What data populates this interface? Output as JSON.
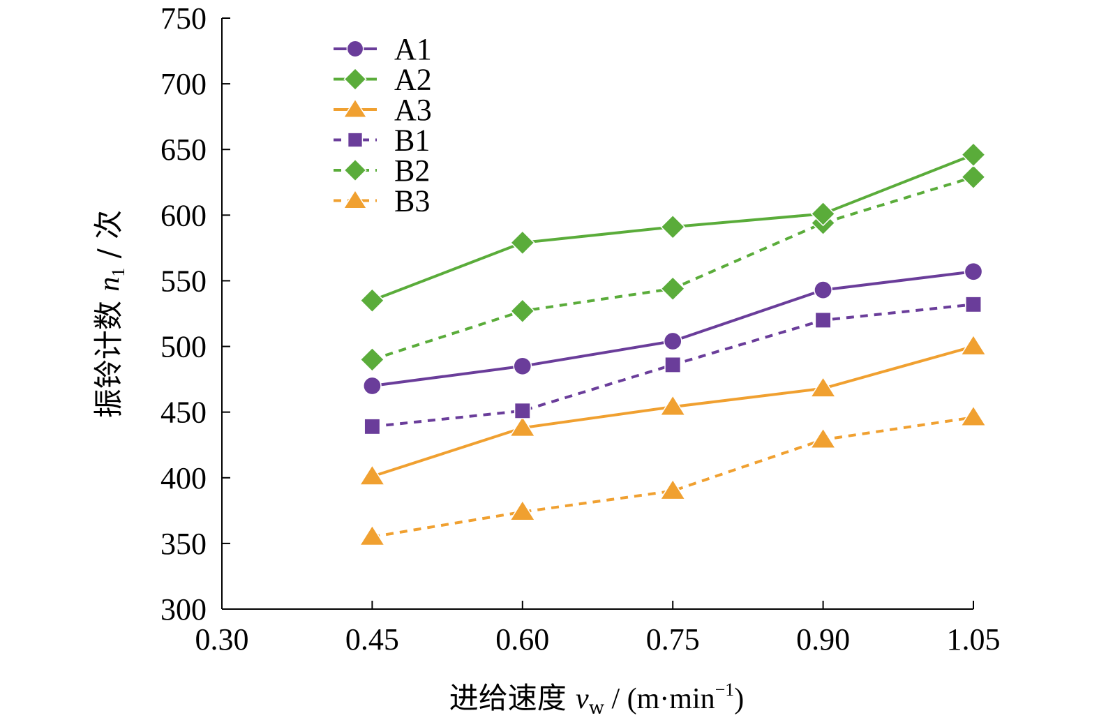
{
  "chart_data": {
    "type": "line",
    "xlabel": {
      "main": "进给速度 ",
      "var": "v",
      "var_sub": "w",
      "unit_open": " / (m·min",
      "unit_sup": "−1",
      "unit_close": ")"
    },
    "ylabel": {
      "main": "振铃计数 ",
      "var": "n",
      "var_sub": "1",
      "unit": " / 次"
    },
    "xlim": [
      0.3,
      1.05
    ],
    "ylim": [
      300,
      750
    ],
    "x_ticks": [
      "0.30",
      "0.45",
      "0.60",
      "0.75",
      "0.90",
      "1.05"
    ],
    "y_ticks": [
      "300",
      "350",
      "400",
      "450",
      "500",
      "550",
      "600",
      "650",
      "700",
      "750"
    ],
    "x": [
      0.45,
      0.6,
      0.75,
      0.9,
      1.05
    ],
    "grid": false,
    "legend_position": "top-left",
    "series": [
      {
        "name": "A1",
        "values": [
          470,
          485,
          504,
          543,
          557
        ],
        "color": "#6a3d9a",
        "marker": "circle",
        "dash": "solid"
      },
      {
        "name": "A2",
        "values": [
          535,
          579,
          591,
          601,
          646
        ],
        "color": "#5aac3a",
        "marker": "diamond",
        "dash": "solid"
      },
      {
        "name": "A3",
        "values": [
          401,
          438,
          454,
          468,
          500
        ],
        "color": "#f0a030",
        "marker": "triangle",
        "dash": "solid"
      },
      {
        "name": "B1",
        "values": [
          439,
          451,
          486,
          520,
          532
        ],
        "color": "#6a3d9a",
        "marker": "square",
        "dash": "dashed"
      },
      {
        "name": "B2",
        "values": [
          490,
          527,
          544,
          594,
          629
        ],
        "color": "#5aac3a",
        "marker": "diamond",
        "dash": "dashed"
      },
      {
        "name": "B3",
        "values": [
          355,
          374,
          390,
          429,
          446
        ],
        "color": "#f0a030",
        "marker": "triangle",
        "dash": "dashed"
      }
    ]
  }
}
